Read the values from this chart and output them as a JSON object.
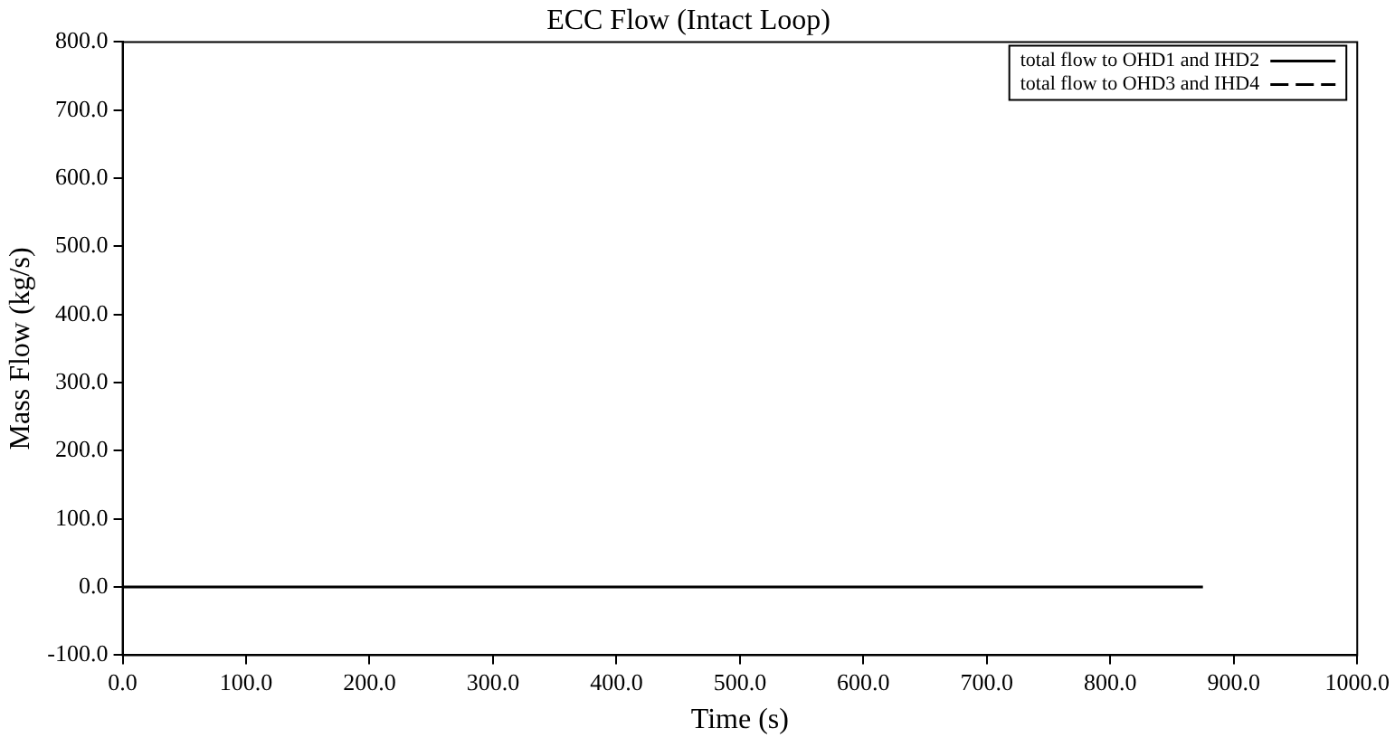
{
  "chart_data": {
    "type": "line",
    "title": "ECC Flow (Intact Loop)",
    "xlabel": "Time (s)",
    "ylabel": "Mass Flow (kg/s)",
    "xlim": [
      0,
      1000
    ],
    "ylim": [
      -100,
      800
    ],
    "xticks": [
      {
        "value": 0,
        "label": "0.0"
      },
      {
        "value": 100,
        "label": "100.0"
      },
      {
        "value": 200,
        "label": "200.0"
      },
      {
        "value": 300,
        "label": "300.0"
      },
      {
        "value": 400,
        "label": "400.0"
      },
      {
        "value": 500,
        "label": "500.0"
      },
      {
        "value": 600,
        "label": "600.0"
      },
      {
        "value": 700,
        "label": "700.0"
      },
      {
        "value": 800,
        "label": "800.0"
      },
      {
        "value": 900,
        "label": "900.0"
      },
      {
        "value": 1000,
        "label": "1000.0"
      }
    ],
    "yticks": [
      {
        "value": -100,
        "label": "-100.0"
      },
      {
        "value": 0,
        "label": "0.0"
      },
      {
        "value": 100,
        "label": "100.0"
      },
      {
        "value": 200,
        "label": "200.0"
      },
      {
        "value": 300,
        "label": "300.0"
      },
      {
        "value": 400,
        "label": "400.0"
      },
      {
        "value": 500,
        "label": "500.0"
      },
      {
        "value": 600,
        "label": "600.0"
      },
      {
        "value": 700,
        "label": "700.0"
      },
      {
        "value": 800,
        "label": "800.0"
      }
    ],
    "grid": false,
    "legend": "top right",
    "marker": "none",
    "series": [
      {
        "name": "total flow to OHD1 and IHD2",
        "color": "#000000",
        "line_style": "solid",
        "x": [
          0,
          875
        ],
        "values": [
          0,
          0
        ]
      },
      {
        "name": "total flow to OHD3 and IHD4",
        "color": "#000000",
        "line_style": "dashed"
      }
    ]
  }
}
